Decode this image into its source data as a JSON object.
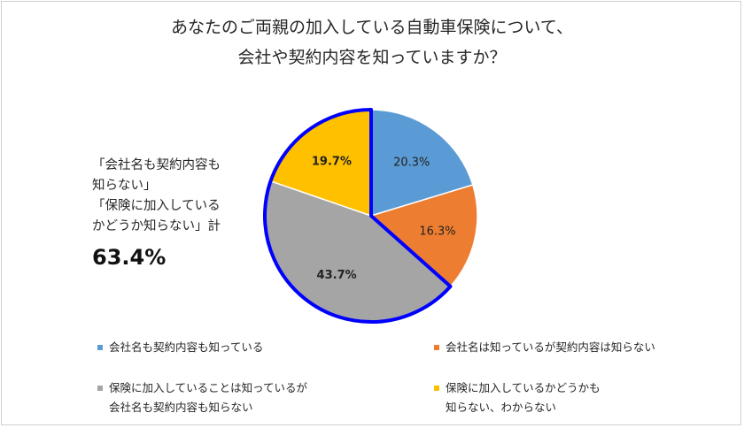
{
  "title_lines": [
    "あなたのご両親の加入している自動車保険について、",
    "会社や契約内容を知っていますか？"
  ],
  "note": {
    "lines": [
      "「会社名も契約内容も",
      "知らない」",
      "「保険に加入している",
      "かどうか知らない」計"
    ],
    "total": "63.4%"
  },
  "colors": {
    "blue": "#5b9bd5",
    "orange": "#ed7d31",
    "gray": "#a5a5a5",
    "gold": "#ffc000",
    "highlight": "#0000ff"
  },
  "chart_data": {
    "type": "pie",
    "title": "あなたのご両親の加入している自動車保険について、会社や契約内容を知っていますか？",
    "labels": [
      "会社名も契約内容も知っている",
      "会社名は知っているが契約内容は知らない",
      "保険に加入していることは知っているが会社名も契約内容も知らない",
      "保険に加入しているかどうかも知らない、わからない"
    ],
    "values": [
      20.3,
      16.3,
      43.7,
      19.7
    ],
    "data_labels": [
      "20.3%",
      "16.3%",
      "43.7%",
      "19.7%"
    ],
    "colors": [
      "#5b9bd5",
      "#ed7d31",
      "#a5a5a5",
      "#ffc000"
    ],
    "highlighted_slices": [
      2,
      3
    ],
    "highlight_total": "63.4%",
    "legend_position": "bottom"
  },
  "legend": [
    {
      "lines": [
        "会社名も契約内容も知っている"
      ],
      "color": "#5b9bd5"
    },
    {
      "lines": [
        "会社名は知っているが契約内容は知らない"
      ],
      "color": "#ed7d31"
    },
    {
      "lines": [
        "保険に加入していることは知っているが",
        "会社名も契約内容も知らない"
      ],
      "color": "#a5a5a5"
    },
    {
      "lines": [
        "保険に加入しているかどうかも",
        "知らない、わからない"
      ],
      "color": "#ffc000"
    }
  ]
}
